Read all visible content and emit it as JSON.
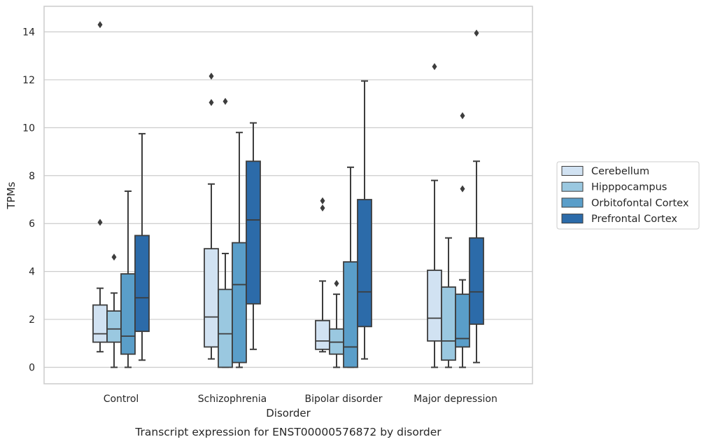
{
  "chart_data": {
    "type": "box",
    "title": "",
    "caption": "Transcript expression for ENST00000576872 by disorder",
    "xlabel": "Disorder",
    "ylabel": "TPMs",
    "ylim": [
      -0.65,
      15.05
    ],
    "yticks": [
      0,
      2,
      4,
      6,
      8,
      10,
      12,
      14
    ],
    "ytick_labels": [
      "0",
      "2",
      "4",
      "6",
      "8",
      "10",
      "12",
      "14"
    ],
    "categories": [
      "Control",
      "Schizophrenia",
      "Bipolar disorder",
      "Major depression"
    ],
    "grid": true,
    "legend_position": "right",
    "series": [
      {
        "name": "Cerebellum",
        "color": "#d1e2f2",
        "boxes": [
          {
            "min": 0.65,
            "q1": 1.05,
            "median": 1.4,
            "q3": 2.6,
            "max": 3.3,
            "outliers": [
              6.05,
              14.3
            ]
          },
          {
            "min": 0.35,
            "q1": 0.85,
            "median": 2.1,
            "q3": 4.95,
            "max": 7.65,
            "outliers": [
              11.05,
              12.15
            ]
          },
          {
            "min": 0.65,
            "q1": 0.75,
            "median": 1.1,
            "q3": 1.95,
            "max": 3.6,
            "outliers": [
              6.65,
              6.95
            ]
          },
          {
            "min": 0.0,
            "q1": 1.1,
            "median": 2.05,
            "q3": 4.05,
            "max": 7.8,
            "outliers": [
              12.55
            ]
          }
        ]
      },
      {
        "name": "Hipppocampus",
        "color": "#9ac8e0",
        "boxes": [
          {
            "min": 0.0,
            "q1": 1.05,
            "median": 1.6,
            "q3": 2.35,
            "max": 3.1,
            "outliers": [
              4.6
            ]
          },
          {
            "min": 0.0,
            "q1": 0.0,
            "median": 1.4,
            "q3": 3.25,
            "max": 4.75,
            "outliers": [
              11.1
            ]
          },
          {
            "min": 0.0,
            "q1": 0.55,
            "median": 1.05,
            "q3": 1.6,
            "max": 3.05,
            "outliers": [
              3.5
            ]
          },
          {
            "min": 0.0,
            "q1": 0.3,
            "median": 1.1,
            "q3": 3.35,
            "max": 5.4,
            "outliers": []
          }
        ]
      },
      {
        "name": "Orbitofontal Cortex",
        "color": "#5a9ec9",
        "boxes": [
          {
            "min": 0.0,
            "q1": 0.55,
            "median": 1.3,
            "q3": 3.9,
            "max": 7.35,
            "outliers": []
          },
          {
            "min": 0.0,
            "q1": 0.2,
            "median": 3.45,
            "q3": 5.2,
            "max": 9.8,
            "outliers": []
          },
          {
            "min": 0.0,
            "q1": 0.0,
            "median": 0.85,
            "q3": 4.4,
            "max": 8.35,
            "outliers": []
          },
          {
            "min": 0.0,
            "q1": 0.85,
            "median": 1.2,
            "q3": 3.05,
            "max": 3.65,
            "outliers": [
              7.45,
              10.5
            ]
          }
        ]
      },
      {
        "name": "Prefrontal Cortex",
        "color": "#2c6ba9",
        "boxes": [
          {
            "min": 0.3,
            "q1": 1.5,
            "median": 2.9,
            "q3": 5.5,
            "max": 9.75,
            "outliers": []
          },
          {
            "min": 0.75,
            "q1": 2.65,
            "median": 6.15,
            "q3": 8.6,
            "max": 10.2,
            "outliers": []
          },
          {
            "min": 0.35,
            "q1": 1.7,
            "median": 3.15,
            "q3": 7.0,
            "max": 11.95,
            "outliers": []
          },
          {
            "min": 0.2,
            "q1": 1.8,
            "median": 3.15,
            "q3": 5.4,
            "max": 8.6,
            "outliers": [
              13.95
            ]
          }
        ]
      }
    ]
  }
}
